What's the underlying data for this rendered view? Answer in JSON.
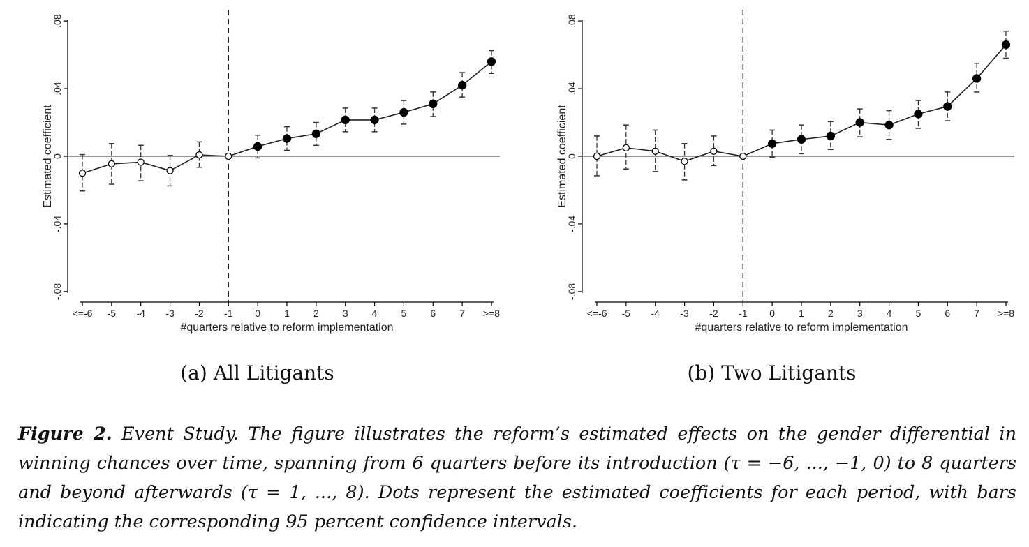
{
  "chart_data": [
    {
      "type": "scatter",
      "panel_caption": "(a)  All Litigants",
      "xlabel": "#quarters relative to reform implementation",
      "ylabel": "Estimated coefficient",
      "categories": [
        "<=-6",
        "-5",
        "-4",
        "-3",
        "-2",
        "-1",
        "0",
        "1",
        "2",
        "3",
        "4",
        "5",
        "6",
        "7",
        ">=8"
      ],
      "ylim": [
        -0.085,
        0.085
      ],
      "yticks": [
        {
          "value": -0.08,
          "label": "-.08"
        },
        {
          "value": -0.04,
          "label": "-.04"
        },
        {
          "value": 0,
          "label": "0"
        },
        {
          "value": 0.04,
          "label": ".04"
        },
        {
          "value": 0.08,
          "label": ".08"
        }
      ],
      "reference_x": "-1",
      "values": [
        -0.01,
        -0.0045,
        -0.0035,
        -0.0085,
        0.0008,
        0.0,
        0.0058,
        0.0105,
        0.0133,
        0.0215,
        0.0215,
        0.026,
        0.031,
        0.042,
        0.056
      ],
      "ci_low": [
        -0.0205,
        -0.0165,
        -0.0145,
        -0.0175,
        -0.0065,
        0.0,
        -0.001,
        0.0035,
        0.0065,
        0.0145,
        0.0145,
        0.019,
        0.0235,
        0.035,
        0.049
      ],
      "ci_high": [
        0.001,
        0.0075,
        0.0065,
        0.0005,
        0.0085,
        0.0,
        0.0125,
        0.0175,
        0.02,
        0.0285,
        0.0285,
        0.033,
        0.038,
        0.0495,
        0.0625
      ],
      "marker_hollow": [
        true,
        true,
        true,
        true,
        true,
        true,
        false,
        false,
        false,
        false,
        false,
        false,
        false,
        false,
        false
      ],
      "grid": false
    },
    {
      "type": "scatter",
      "panel_caption": "(b)  Two Litigants",
      "xlabel": "#quarters relative to reform implementation",
      "ylabel": "Estimated coefficient",
      "categories": [
        "<=-6",
        "-5",
        "-4",
        "-3",
        "-2",
        "-1",
        "0",
        "1",
        "2",
        "3",
        "4",
        "5",
        "6",
        "7",
        ">=8"
      ],
      "ylim": [
        -0.085,
        0.085
      ],
      "yticks": [
        {
          "value": -0.08,
          "label": "-.08"
        },
        {
          "value": -0.04,
          "label": "-.04"
        },
        {
          "value": 0,
          "label": "0"
        },
        {
          "value": 0.04,
          "label": ".04"
        },
        {
          "value": 0.08,
          "label": ".08"
        }
      ],
      "reference_x": "-1",
      "values": [
        0.0,
        0.005,
        0.003,
        -0.003,
        0.003,
        0.0,
        0.0075,
        0.01,
        0.012,
        0.02,
        0.0185,
        0.025,
        0.0295,
        0.046,
        0.066
      ],
      "ci_low": [
        -0.0115,
        -0.0075,
        -0.009,
        -0.014,
        -0.0055,
        0.0,
        -0.0005,
        0.0015,
        0.004,
        0.0115,
        0.01,
        0.0165,
        0.021,
        0.038,
        0.058
      ],
      "ci_high": [
        0.012,
        0.0185,
        0.0155,
        0.0075,
        0.012,
        0.0,
        0.0155,
        0.0185,
        0.0205,
        0.028,
        0.027,
        0.033,
        0.038,
        0.055,
        0.074
      ],
      "marker_hollow": [
        true,
        true,
        true,
        true,
        true,
        true,
        false,
        false,
        false,
        false,
        false,
        false,
        false,
        false,
        false
      ],
      "grid": false
    }
  ],
  "caption": {
    "label": "Figure 2.",
    "text": " Event Study. The figure illustrates the reform’s estimated effects on the gender differential in winning chances over time, spanning from 6 quarters before its introduction (τ = −6, ..., −1, 0) to 8 quarters and beyond afterwards (τ = 1, ..., 8). Dots represent the estimated coefficients for each period, with bars indicating the corresponding 95 percent confidence intervals."
  }
}
